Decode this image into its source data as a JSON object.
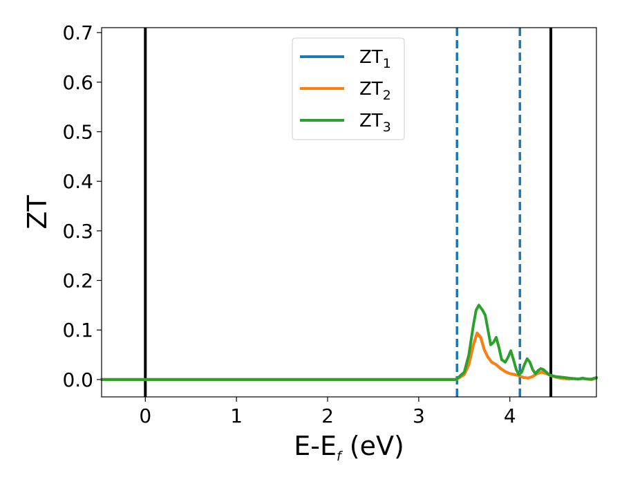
{
  "chart_data": {
    "type": "line",
    "xlabel_main": "E-E",
    "xlabel_sub": "f",
    "xlabel_unit": "(eV)",
    "ylabel": "ZT",
    "xlim": [
      -0.48,
      4.95
    ],
    "ylim": [
      -0.035,
      0.71
    ],
    "x_ticks": [
      0,
      1,
      2,
      3,
      4
    ],
    "x_tick_labels": [
      "0",
      "1",
      "2",
      "3",
      "4"
    ],
    "y_ticks": [
      0.0,
      0.1,
      0.2,
      0.3,
      0.4,
      0.5,
      0.6,
      0.7
    ],
    "y_tick_labels": [
      "0.0",
      "0.1",
      "0.2",
      "0.3",
      "0.4",
      "0.5",
      "0.6",
      "0.7"
    ],
    "legend_position": "top-center",
    "vertical_lines": [
      {
        "x": 0.0,
        "style": "solid",
        "color": "#000000"
      },
      {
        "x": 3.42,
        "style": "dashed",
        "color": "#1f77b4"
      },
      {
        "x": 4.11,
        "style": "dashed",
        "color": "#1f77b4"
      },
      {
        "x": 4.45,
        "style": "solid",
        "color": "#000000"
      }
    ],
    "series": [
      {
        "name": "ZT",
        "sub": "1",
        "color": "#1f77b4",
        "x": [
          -0.48,
          3.4,
          3.42,
          3.5,
          3.55,
          3.6,
          3.64,
          3.68,
          3.72,
          3.76,
          3.8,
          3.85,
          3.9,
          3.95,
          4.0,
          4.05,
          4.1,
          4.15,
          4.2,
          4.25,
          4.3,
          4.35,
          4.4,
          4.45,
          4.5,
          4.55,
          4.6,
          4.65,
          4.7,
          4.75,
          4.8,
          4.85,
          4.9,
          4.95
        ],
        "y": [
          0.0,
          0.0,
          0.001,
          0.01,
          0.03,
          0.07,
          0.093,
          0.085,
          0.06,
          0.045,
          0.035,
          0.03,
          0.022,
          0.016,
          0.012,
          0.01,
          0.008,
          0.004,
          0.003,
          0.006,
          0.012,
          0.015,
          0.012,
          0.008,
          0.005,
          0.003,
          0.002,
          0.001,
          0.002,
          0.001,
          0.002,
          0.001,
          0.0,
          0.003
        ]
      },
      {
        "name": "ZT",
        "sub": "2",
        "color": "#ff7f0e",
        "x": [
          -0.48,
          3.4,
          3.42,
          3.5,
          3.55,
          3.6,
          3.64,
          3.68,
          3.72,
          3.76,
          3.8,
          3.85,
          3.9,
          3.95,
          4.0,
          4.05,
          4.1,
          4.15,
          4.2,
          4.25,
          4.3,
          4.35,
          4.4,
          4.45,
          4.5,
          4.55,
          4.6,
          4.65,
          4.7,
          4.75,
          4.8,
          4.85,
          4.9,
          4.95
        ],
        "y": [
          0.0,
          0.0,
          0.001,
          0.01,
          0.03,
          0.07,
          0.094,
          0.086,
          0.06,
          0.045,
          0.035,
          0.03,
          0.022,
          0.016,
          0.012,
          0.01,
          0.008,
          0.004,
          0.003,
          0.006,
          0.012,
          0.015,
          0.012,
          0.008,
          0.005,
          0.003,
          0.002,
          0.001,
          0.002,
          0.001,
          0.002,
          0.001,
          0.0,
          0.003
        ]
      },
      {
        "name": "ZT",
        "sub": "3",
        "color": "#2ca02c",
        "x": [
          -0.48,
          3.4,
          3.42,
          3.5,
          3.55,
          3.6,
          3.63,
          3.66,
          3.7,
          3.73,
          3.76,
          3.79,
          3.82,
          3.85,
          3.88,
          3.91,
          3.95,
          3.98,
          4.01,
          4.04,
          4.07,
          4.1,
          4.13,
          4.16,
          4.19,
          4.22,
          4.25,
          4.28,
          4.31,
          4.34,
          4.37,
          4.4,
          4.43,
          4.46,
          4.5,
          4.55,
          4.6,
          4.65,
          4.7,
          4.75,
          4.8,
          4.85,
          4.9,
          4.95
        ],
        "y": [
          0.0,
          0.0,
          0.002,
          0.015,
          0.05,
          0.11,
          0.14,
          0.15,
          0.14,
          0.13,
          0.1,
          0.07,
          0.075,
          0.085,
          0.065,
          0.04,
          0.035,
          0.045,
          0.058,
          0.04,
          0.02,
          0.01,
          0.015,
          0.03,
          0.042,
          0.035,
          0.02,
          0.012,
          0.018,
          0.022,
          0.02,
          0.015,
          0.01,
          0.008,
          0.006,
          0.005,
          0.004,
          0.003,
          0.002,
          0.001,
          0.003,
          0.001,
          0.001,
          0.004
        ]
      }
    ]
  }
}
